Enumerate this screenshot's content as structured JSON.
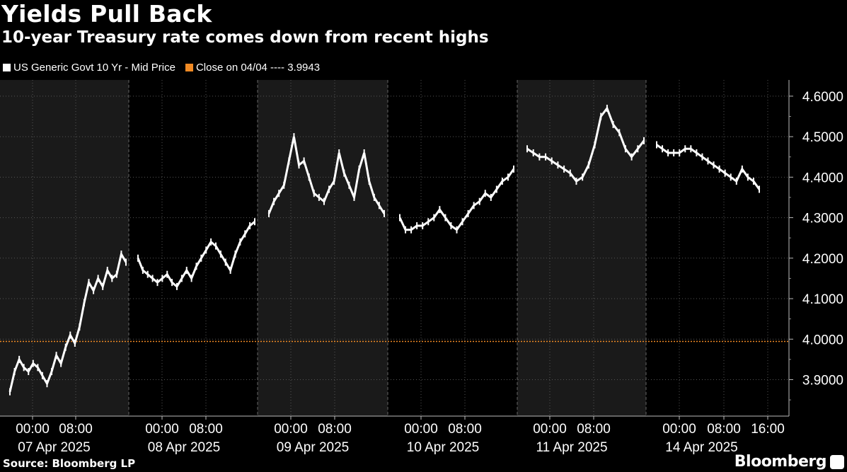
{
  "header": {
    "title": "Yields Pull Back",
    "subtitle": "10-year Treasury rate comes down from recent highs"
  },
  "legend": {
    "series_label": "US Generic Govt 10 Yr - Mid Price",
    "ref_label": "Close on 04/04 ---- 3.9943"
  },
  "footer": {
    "source": "Source: Bloomberg LP",
    "brand": "Bloomberg"
  },
  "colors": {
    "background": "#000000",
    "shaded_band": "#1a1a1a",
    "series": "#ffffff",
    "reference": "#f08a24",
    "grid": "#555555"
  },
  "chart_data": {
    "type": "line",
    "title": "Yields Pull Back",
    "subtitle": "10-year Treasury rate comes down from recent highs",
    "xlabel": "",
    "ylabel": "",
    "ylim": [
      3.81,
      4.64
    ],
    "y_ticks": [
      3.9,
      4.0,
      4.1,
      4.2,
      4.3,
      4.4,
      4.5,
      4.6
    ],
    "y_tick_labels": [
      "3.9000",
      "4.0000",
      "4.1000",
      "4.2000",
      "4.3000",
      "4.4000",
      "4.5000",
      "4.6000"
    ],
    "y_axis_side": "right",
    "grid": true,
    "legend_position": "top-left",
    "reference_line": {
      "label": "Close on 04/04",
      "value": 3.9943
    },
    "days": [
      {
        "label": "07 Apr 2025",
        "times": [
          "00:00",
          "08:00"
        ]
      },
      {
        "label": "08 Apr 2025",
        "times": [
          "00:00",
          "08:00"
        ]
      },
      {
        "label": "09 Apr 2025",
        "times": [
          "00:00",
          "08:00"
        ]
      },
      {
        "label": "10 Apr 2025",
        "times": [
          "00:00",
          "08:00"
        ]
      },
      {
        "label": "11 Apr 2025",
        "times": [
          "00:00",
          "08:00"
        ]
      },
      {
        "label": "14 Apr 2025",
        "times": [
          "00:00",
          "08:00",
          "16:00"
        ]
      }
    ],
    "series": [
      {
        "name": "US Generic Govt 10 Yr - Mid Price",
        "segments": [
          {
            "day": "07 Apr 2025",
            "values": [
              3.87,
              3.92,
              3.95,
              3.93,
              3.92,
              3.94,
              3.93,
              3.91,
              3.89,
              3.92,
              3.96,
              3.94,
              3.98,
              4.01,
              3.99,
              4.03,
              4.09,
              4.14,
              4.12,
              4.15,
              4.13,
              4.17,
              4.15,
              4.16,
              4.21,
              4.19
            ]
          },
          {
            "day": "08 Apr 2025",
            "values": [
              4.2,
              4.17,
              4.16,
              4.15,
              4.14,
              4.15,
              4.16,
              4.14,
              4.13,
              4.15,
              4.17,
              4.15,
              4.18,
              4.2,
              4.22,
              4.24,
              4.23,
              4.21,
              4.19,
              4.17,
              4.21,
              4.24,
              4.26,
              4.28,
              4.29
            ]
          },
          {
            "day": "09 Apr 2025",
            "values": [
              4.31,
              4.34,
              4.36,
              4.38,
              4.44,
              4.5,
              4.43,
              4.44,
              4.4,
              4.36,
              4.35,
              4.34,
              4.37,
              4.39,
              4.46,
              4.41,
              4.38,
              4.35,
              4.42,
              4.46,
              4.39,
              4.35,
              4.33,
              4.31
            ]
          },
          {
            "day": "10 Apr 2025",
            "values": [
              4.3,
              4.27,
              4.27,
              4.28,
              4.28,
              4.29,
              4.3,
              4.32,
              4.3,
              4.28,
              4.27,
              4.29,
              4.31,
              4.33,
              4.34,
              4.36,
              4.35,
              4.37,
              4.39,
              4.4,
              4.42
            ]
          },
          {
            "day": "11 Apr 2025",
            "values": [
              4.47,
              4.46,
              4.45,
              4.45,
              4.44,
              4.43,
              4.42,
              4.41,
              4.39,
              4.4,
              4.43,
              4.48,
              4.55,
              4.57,
              4.53,
              4.51,
              4.47,
              4.45,
              4.47,
              4.49
            ]
          },
          {
            "day": "14 Apr 2025",
            "values": [
              4.48,
              4.47,
              4.46,
              4.46,
              4.46,
              4.47,
              4.47,
              4.46,
              4.45,
              4.44,
              4.43,
              4.42,
              4.41,
              4.4,
              4.39,
              4.42,
              4.4,
              4.39,
              4.37
            ]
          }
        ]
      }
    ]
  }
}
